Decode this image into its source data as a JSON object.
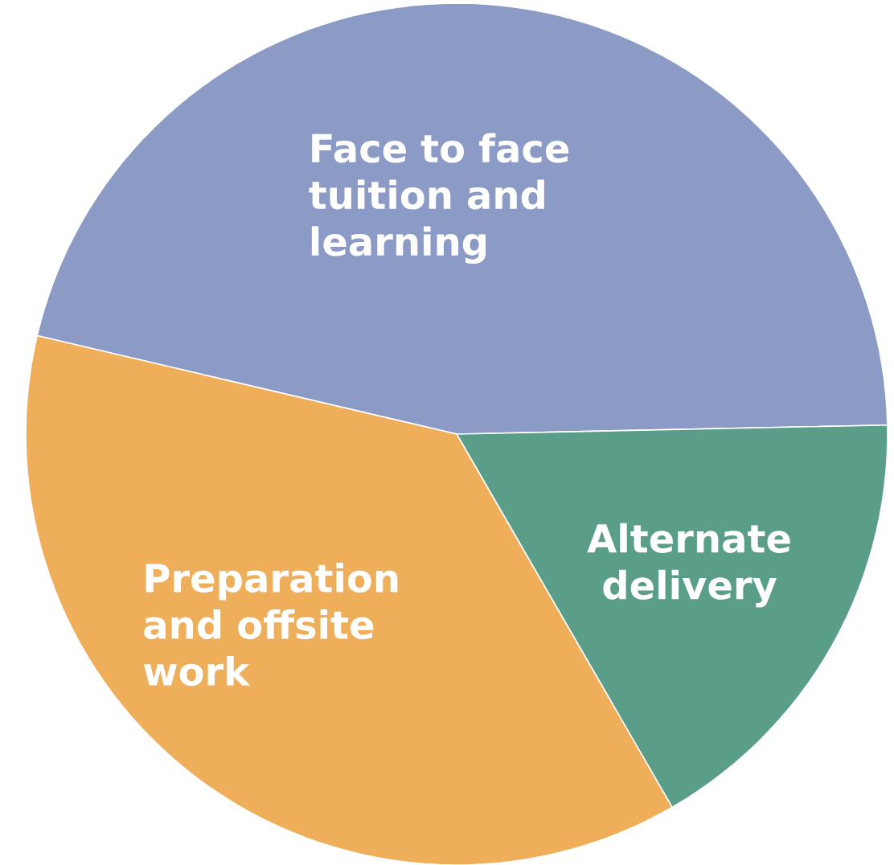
{
  "chart_data": {
    "type": "pie",
    "categories": [
      "Face to face tuition and learning",
      "Alternate delivery",
      "Preparation and offsite work"
    ],
    "values": [
      46,
      17,
      37
    ],
    "colors": [
      "#8b9bc6",
      "#5a9e8a",
      "#efae5a"
    ]
  }
}
